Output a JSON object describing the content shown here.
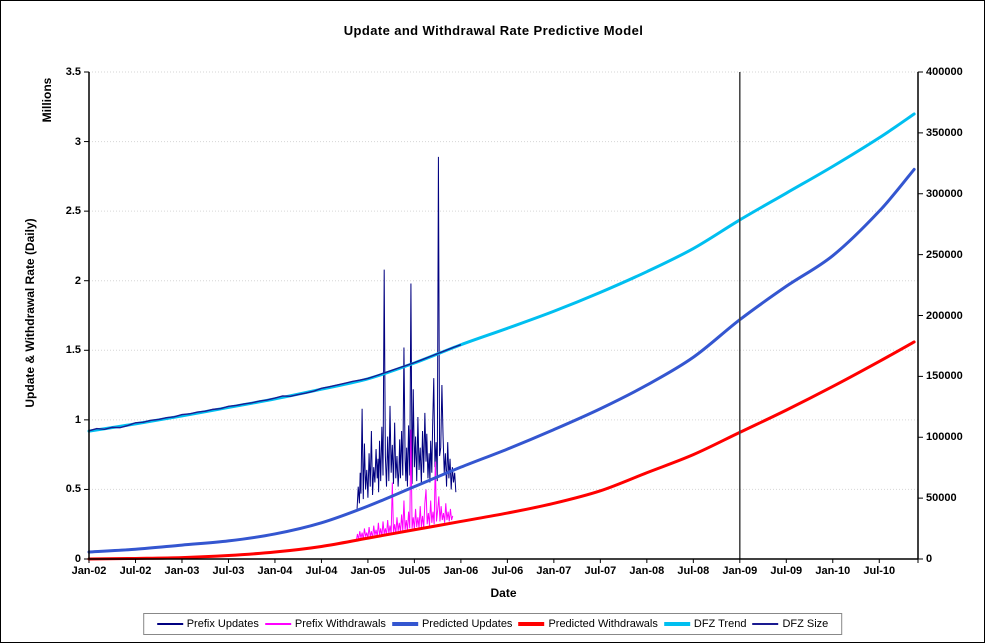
{
  "chart_data": {
    "type": "line",
    "title": "Update and Withdrawal Rate Predictive Model",
    "x_axis": {
      "label": "Date",
      "tick_labels": [
        "Jan-02",
        "Jul-02",
        "Jan-03",
        "Jul-03",
        "Jan-04",
        "Jul-04",
        "Jan-05",
        "Jul-05",
        "Jan-06",
        "Jul-06",
        "Jan-07",
        "Jul-07",
        "Jan-08",
        "Jul-08",
        "Jan-09",
        "Jul-09",
        "Jan-10",
        "Jul-10"
      ],
      "months_per_tick": 6,
      "months_total": 107
    },
    "left_axis": {
      "unit_label": "Millions",
      "label": "Update & Withdrawal Rate (Daily)",
      "tick_labels": [
        "0",
        "0.5",
        "1",
        "1.5",
        "2",
        "2.5",
        "3",
        "3.5"
      ],
      "min": 0,
      "max": 3.5,
      "tick_step": 0.5
    },
    "right_axis": {
      "tick_labels": [
        "0",
        "50000",
        "100000",
        "150000",
        "200000",
        "250000",
        "300000",
        "350000",
        "400000"
      ],
      "min": 0,
      "max": 400000,
      "tick_step": 50000
    },
    "marker_line": {
      "month": 84,
      "x_label": "Jan-09",
      "color": "#404040"
    },
    "grid_color": "#D6D6D6",
    "axis_color": "#000000",
    "series": [
      {
        "name": "Prefix Updates",
        "axis": "left",
        "color": "#000080",
        "width": 1,
        "smooth": false,
        "m": [
          34.6,
          34.75,
          34.9,
          35.0,
          35.1,
          35.25,
          35.4,
          35.55,
          35.7,
          35.85,
          36.0,
          36.15,
          36.3,
          36.45,
          36.6,
          36.75,
          36.9,
          37.05,
          37.2,
          37.3,
          37.38,
          37.5,
          37.65,
          37.8,
          37.95,
          38.1,
          38.25,
          38.4,
          38.55,
          38.7,
          38.85,
          39.0,
          39.15,
          39.3,
          39.45,
          39.6,
          39.75,
          39.9,
          40.0,
          40.1,
          40.2,
          40.35,
          40.5,
          40.65,
          40.8,
          40.9,
          41.0,
          41.1,
          41.25,
          41.4,
          41.55,
          41.7,
          41.85,
          42.0,
          42.15,
          42.3,
          42.45,
          42.6,
          42.75,
          42.9,
          43.05,
          43.2,
          43.35,
          43.5,
          43.6,
          43.75,
          43.9,
          44.0,
          44.1,
          44.25,
          44.35,
          44.5,
          44.65,
          44.8,
          44.95,
          45.1,
          45.25,
          45.4,
          45.55,
          45.7,
          45.85,
          46.0,
          46.15,
          46.3,
          46.45,
          46.6,
          46.75,
          46.9,
          47.05,
          47.2,
          47.35
        ],
        "v": [
          0.36,
          0.52,
          0.4,
          0.62,
          0.47,
          1.08,
          0.43,
          0.83,
          0.5,
          0.64,
          0.44,
          0.76,
          0.52,
          0.92,
          0.46,
          0.66,
          0.55,
          0.79,
          0.58,
          0.72,
          0.48,
          0.85,
          0.56,
          0.95,
          0.6,
          2.08,
          0.74,
          0.52,
          0.88,
          0.56,
          1.1,
          0.62,
          0.82,
          0.54,
          0.98,
          0.58,
          0.74,
          0.52,
          0.63,
          0.86,
          0.58,
          0.92,
          0.6,
          1.52,
          0.72,
          0.56,
          0.8,
          0.52,
          0.96,
          0.6,
          1.98,
          0.54,
          1.22,
          0.66,
          0.88,
          0.56,
          1.02,
          0.64,
          0.8,
          0.54,
          0.92,
          0.62,
          1.05,
          0.7,
          0.9,
          0.58,
          0.76,
          0.55,
          0.85,
          0.62,
          0.95,
          1.3,
          0.66,
          0.84,
          0.56,
          2.89,
          0.74,
          0.8,
          1.25,
          0.88,
          0.62,
          0.76,
          0.52,
          0.84,
          0.58,
          0.72,
          0.5,
          0.66,
          0.55,
          0.62,
          0.48
        ]
      },
      {
        "name": "Prefix Withdrawals",
        "axis": "left",
        "color": "#FF00FF",
        "width": 1,
        "smooth": false,
        "m": [
          34.5,
          34.65,
          34.8,
          34.95,
          35.1,
          35.25,
          35.4,
          35.55,
          35.7,
          35.85,
          36.0,
          36.15,
          36.3,
          36.45,
          36.6,
          36.75,
          36.9,
          37.05,
          37.2,
          37.35,
          37.5,
          37.65,
          37.8,
          37.95,
          38.1,
          38.25,
          38.4,
          38.55,
          38.7,
          38.85,
          39.0,
          39.15,
          39.3,
          39.45,
          39.6,
          39.75,
          39.9,
          40.05,
          40.2,
          40.35,
          40.5,
          40.65,
          40.8,
          40.95,
          41.1,
          41.25,
          41.4,
          41.55,
          41.7,
          41.85,
          42.0,
          42.15,
          42.3,
          42.45,
          42.6,
          42.75,
          42.9,
          43.05,
          43.2,
          43.35,
          43.5,
          43.65,
          43.8,
          43.95,
          44.1,
          44.25,
          44.4,
          44.55,
          44.7,
          44.85,
          45.0,
          45.15,
          45.3,
          45.45,
          45.6,
          45.75,
          45.9,
          46.05,
          46.2,
          46.35,
          46.5,
          46.65,
          46.8,
          46.95
        ],
        "v": [
          0.13,
          0.18,
          0.14,
          0.2,
          0.15,
          0.19,
          0.14,
          0.22,
          0.16,
          0.19,
          0.15,
          0.23,
          0.16,
          0.2,
          0.15,
          0.24,
          0.17,
          0.21,
          0.16,
          0.26,
          0.17,
          0.22,
          0.16,
          0.27,
          0.18,
          0.22,
          0.17,
          0.28,
          0.18,
          0.24,
          0.18,
          0.55,
          0.19,
          0.25,
          0.18,
          0.3,
          0.2,
          0.26,
          0.19,
          0.32,
          0.2,
          0.42,
          0.21,
          0.28,
          0.2,
          0.34,
          0.22,
          0.93,
          0.22,
          0.3,
          0.21,
          0.36,
          0.23,
          0.3,
          0.22,
          0.38,
          0.23,
          0.31,
          0.22,
          0.4,
          0.5,
          0.25,
          0.33,
          0.24,
          0.42,
          0.26,
          0.34,
          0.25,
          0.7,
          0.27,
          0.35,
          0.45,
          0.27,
          0.38,
          0.28,
          0.33,
          0.26,
          0.4,
          0.28,
          0.34,
          0.27,
          0.36,
          0.28,
          0.31
        ]
      },
      {
        "name": "Predicted Updates",
        "axis": "left",
        "color": "#3456D0",
        "width": 3,
        "smooth": true,
        "m": [
          0,
          6,
          12,
          18,
          24,
          30,
          36,
          42,
          48,
          54,
          60,
          66,
          72,
          78,
          84,
          90,
          96,
          102,
          106.5
        ],
        "v": [
          0.05,
          0.07,
          0.1,
          0.13,
          0.18,
          0.26,
          0.38,
          0.52,
          0.66,
          0.79,
          0.93,
          1.08,
          1.25,
          1.45,
          1.72,
          1.96,
          2.18,
          2.5,
          2.8
        ]
      },
      {
        "name": "Predicted Withdrawals",
        "axis": "left",
        "color": "#FF0000",
        "width": 3,
        "smooth": true,
        "m": [
          0,
          6,
          12,
          18,
          24,
          30,
          36,
          42,
          48,
          54,
          60,
          66,
          72,
          78,
          84,
          90,
          96,
          102,
          106.5
        ],
        "v": [
          0.0,
          0.004,
          0.01,
          0.025,
          0.05,
          0.09,
          0.15,
          0.21,
          0.27,
          0.33,
          0.4,
          0.49,
          0.62,
          0.75,
          0.91,
          1.07,
          1.24,
          1.42,
          1.56
        ]
      },
      {
        "name": "DFZ Trend",
        "axis": "right",
        "color": "#00BFF0",
        "width": 3,
        "smooth": true,
        "m": [
          0,
          6,
          12,
          18,
          24,
          30,
          36,
          42,
          48,
          54,
          60,
          66,
          72,
          78,
          84,
          90,
          96,
          102,
          106.5
        ],
        "v": [
          105000,
          111000,
          117500,
          124500,
          131500,
          139500,
          148000,
          161000,
          176000,
          189500,
          203500,
          219000,
          236000,
          255000,
          278500,
          300500,
          322500,
          346000,
          365500
        ]
      },
      {
        "name": "DFZ Size",
        "axis": "right",
        "color": "#1A1A90",
        "width": 1.4,
        "smooth": false,
        "m": [
          0,
          1,
          2,
          3,
          4,
          5,
          6,
          7,
          8,
          9,
          10,
          11,
          12,
          13,
          14,
          15,
          16,
          17,
          18,
          19,
          20,
          21,
          22,
          23,
          24,
          25,
          26,
          27,
          28,
          29,
          30,
          31,
          32,
          33,
          34,
          35,
          36,
          37,
          38,
          39,
          40,
          41,
          42,
          43,
          44,
          45,
          46,
          47,
          48
        ],
        "v": [
          105300,
          107100,
          106500,
          108200,
          107900,
          109600,
          111900,
          112400,
          113900,
          114600,
          116100,
          116800,
          118600,
          119200,
          120700,
          121400,
          122900,
          123600,
          125400,
          126100,
          127400,
          128300,
          129700,
          130600,
          132200,
          133900,
          133600,
          135100,
          136300,
          137800,
          140200,
          141400,
          142900,
          144300,
          145800,
          147000,
          148300,
          150400,
          152600,
          154800,
          157000,
          159100,
          161300,
          163700,
          166200,
          168700,
          171200,
          173700,
          176000
        ]
      }
    ]
  }
}
